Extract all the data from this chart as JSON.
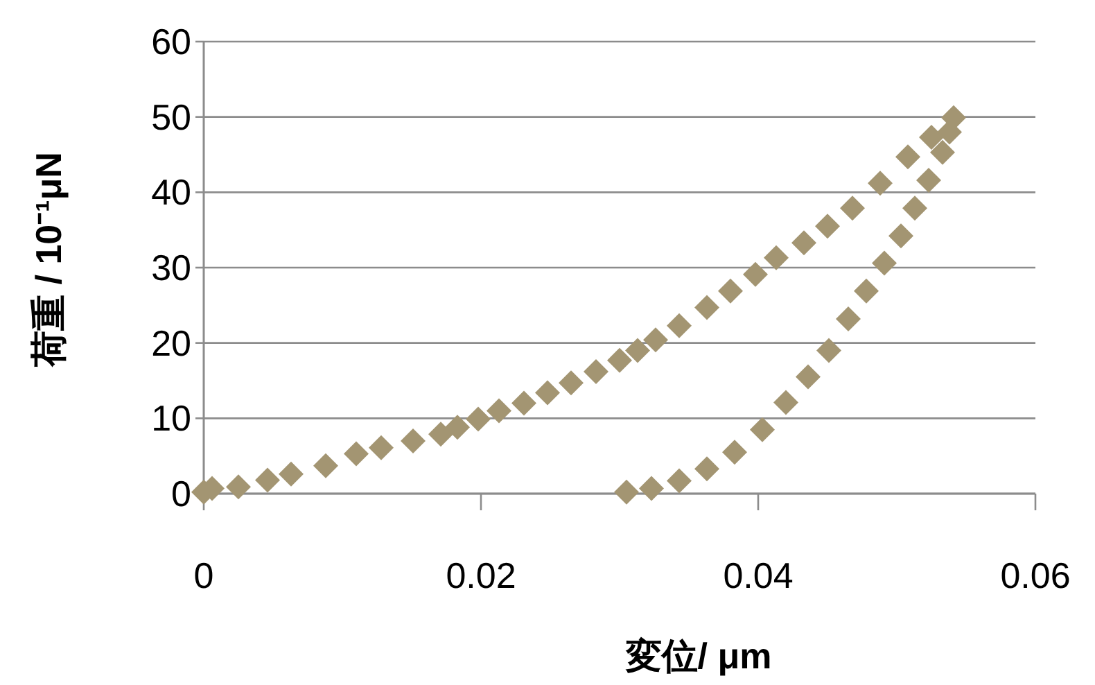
{
  "chart_data": {
    "type": "scatter",
    "xlabel": "変位/ μm",
    "ylabel": "荷重 / 10⁻¹μN",
    "xlim": [
      0,
      0.06
    ],
    "xticks": [
      0,
      0.02,
      0.04,
      0.06
    ],
    "ylim": [
      0,
      60
    ],
    "yticks": [
      0,
      10,
      20,
      30,
      40,
      50,
      60
    ],
    "grid": "y",
    "marker": "diamond",
    "series": [
      {
        "color": "#a39572",
        "x": [
          0,
          0.0006,
          0.0025,
          0.0046,
          0.0063,
          0.0088,
          0.011,
          0.0128,
          0.0151,
          0.0171,
          0.0183,
          0.0198,
          0.0213,
          0.0231,
          0.0248,
          0.0265,
          0.0283,
          0.03,
          0.0313,
          0.0326,
          0.0343,
          0.0363,
          0.038,
          0.0398,
          0.0413,
          0.0433,
          0.045,
          0.0468,
          0.0488,
          0.0508,
          0.0525,
          0.0541,
          0.0538,
          0.0533,
          0.0523,
          0.0513,
          0.0503,
          0.0491,
          0.0478,
          0.0465,
          0.0451,
          0.0436,
          0.042,
          0.0403,
          0.0383,
          0.0363,
          0.0343,
          0.0323,
          0.0305
        ],
        "values": [
          0.2,
          0.7,
          0.9,
          1.8,
          2.6,
          3.7,
          5.3,
          6.1,
          7,
          7.9,
          8.8,
          9.9,
          11,
          12,
          13.4,
          14.7,
          16.2,
          17.7,
          19,
          20.4,
          22.3,
          24.7,
          26.9,
          29.1,
          31.3,
          33.3,
          35.5,
          37.9,
          41.2,
          44.7,
          47.3,
          49.9,
          48,
          45.3,
          41.6,
          37.9,
          34.2,
          30.6,
          26.9,
          23.2,
          19,
          15.5,
          12.1,
          8.5,
          5.5,
          3.3,
          1.7,
          0.7,
          0.2
        ]
      }
    ]
  }
}
